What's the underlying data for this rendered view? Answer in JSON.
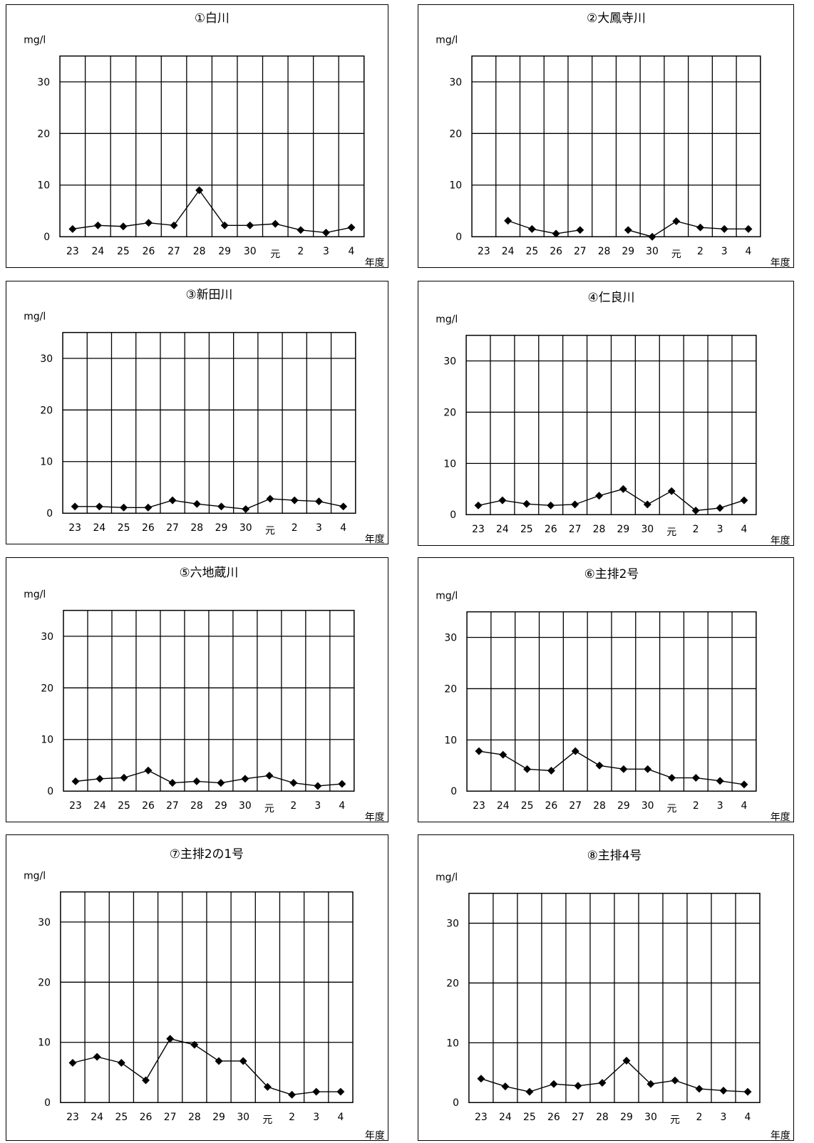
{
  "chart_data": [
    {
      "type": "line",
      "title": "①白川",
      "unit": "mg/l",
      "xlabel": "年度",
      "categories": [
        "23",
        "24",
        "25",
        "26",
        "27",
        "28",
        "29",
        "30",
        "元",
        "2",
        "3",
        "4"
      ],
      "values": [
        1.5,
        2.2,
        2.0,
        2.7,
        2.2,
        9.0,
        2.2,
        2.2,
        2.5,
        1.3,
        0.8,
        1.8
      ],
      "yticks": [
        0,
        10,
        20,
        30
      ],
      "ylim": [
        0,
        35
      ],
      "grid": true
    },
    {
      "type": "line",
      "title": "②大鳳寺川",
      "unit": "mg/l",
      "xlabel": "年度",
      "categories": [
        "23",
        "24",
        "25",
        "26",
        "27",
        "28",
        "29",
        "30",
        "元",
        "2",
        "3",
        "4"
      ],
      "values": [
        null,
        3.1,
        1.5,
        0.6,
        1.3,
        null,
        1.3,
        0.0,
        3.0,
        1.8,
        1.5,
        1.5
      ],
      "yticks": [
        0,
        10,
        20,
        30
      ],
      "ylim": [
        0,
        35
      ],
      "grid": true
    },
    {
      "type": "line",
      "title": "③新田川",
      "unit": "mg/l",
      "xlabel": "年度",
      "categories": [
        "23",
        "24",
        "25",
        "26",
        "27",
        "28",
        "29",
        "30",
        "元",
        "2",
        "3",
        "4"
      ],
      "values": [
        1.3,
        1.3,
        1.1,
        1.1,
        2.5,
        1.8,
        1.3,
        0.8,
        2.8,
        2.5,
        2.3,
        1.3
      ],
      "yticks": [
        0,
        10,
        20,
        30
      ],
      "ylim": [
        0,
        35
      ],
      "grid": true
    },
    {
      "type": "line",
      "title": "④仁良川",
      "unit": "mg/l",
      "xlabel": "年度",
      "categories": [
        "23",
        "24",
        "25",
        "26",
        "27",
        "28",
        "29",
        "30",
        "元",
        "2",
        "3",
        "4"
      ],
      "values": [
        1.8,
        2.8,
        2.1,
        1.8,
        2.0,
        3.7,
        5.0,
        2.0,
        4.6,
        0.8,
        1.3,
        2.8
      ],
      "yticks": [
        0,
        10,
        20,
        30
      ],
      "ylim": [
        0,
        35
      ],
      "grid": true
    },
    {
      "type": "line",
      "title": "⑤六地蔵川",
      "unit": "mg/l",
      "xlabel": "年度",
      "categories": [
        "23",
        "24",
        "25",
        "26",
        "27",
        "28",
        "29",
        "30",
        "元",
        "2",
        "3",
        "4"
      ],
      "values": [
        1.9,
        2.4,
        2.6,
        4.0,
        1.6,
        1.9,
        1.6,
        2.4,
        3.0,
        1.6,
        1.0,
        1.4
      ],
      "yticks": [
        0,
        10,
        20,
        30
      ],
      "ylim": [
        0,
        35
      ],
      "grid": true
    },
    {
      "type": "line",
      "title": "⑥主排2号",
      "unit": "mg/l",
      "xlabel": "年度",
      "categories": [
        "23",
        "24",
        "25",
        "26",
        "27",
        "28",
        "29",
        "30",
        "元",
        "2",
        "3",
        "4"
      ],
      "values": [
        7.8,
        7.1,
        4.3,
        4.0,
        7.8,
        5.0,
        4.3,
        4.3,
        2.6,
        2.6,
        2.0,
        1.3
      ],
      "yticks": [
        0,
        10,
        20,
        30
      ],
      "ylim": [
        0,
        35
      ],
      "grid": true
    },
    {
      "type": "line",
      "title": "⑦主排2の1号",
      "unit": "mg/l",
      "xlabel": "年度",
      "categories": [
        "23",
        "24",
        "25",
        "26",
        "27",
        "28",
        "29",
        "30",
        "元",
        "2",
        "3",
        "4"
      ],
      "values": [
        6.6,
        7.6,
        6.6,
        3.7,
        10.6,
        9.6,
        6.9,
        6.9,
        2.6,
        1.3,
        1.8,
        1.8
      ],
      "yticks": [
        0,
        10,
        20,
        30
      ],
      "ylim": [
        0,
        35
      ],
      "grid": true
    },
    {
      "type": "line",
      "title": "⑧主排4号",
      "unit": "mg/l",
      "xlabel": "年度",
      "categories": [
        "23",
        "24",
        "25",
        "26",
        "27",
        "28",
        "29",
        "30",
        "元",
        "2",
        "3",
        "4"
      ],
      "values": [
        4.0,
        2.7,
        1.8,
        3.1,
        2.8,
        3.3,
        7.0,
        3.1,
        3.7,
        2.3,
        2.0,
        1.8
      ],
      "yticks": [
        0,
        10,
        20,
        30
      ],
      "ylim": [
        0,
        35
      ],
      "grid": true
    }
  ]
}
